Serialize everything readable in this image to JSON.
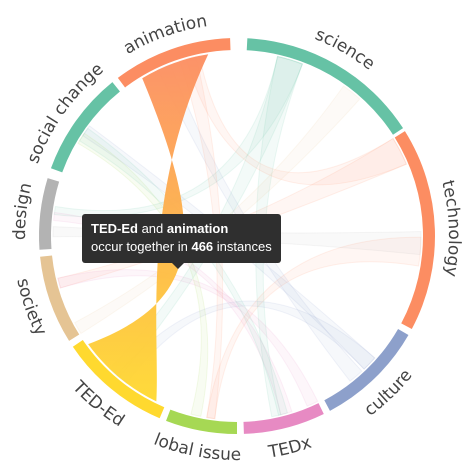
{
  "chart_data": {
    "type": "chord",
    "groups": [
      {
        "name": "science",
        "color": "#66c2a5"
      },
      {
        "name": "technology",
        "color": "#fc8d62"
      },
      {
        "name": "culture",
        "color": "#8da0cb"
      },
      {
        "name": "TEDx",
        "color": "#e78ac3"
      },
      {
        "name": "lobal issue",
        "color": "#a6d854"
      },
      {
        "name": "TED-Ed",
        "color": "#ffd92f"
      },
      {
        "name": "society",
        "color": "#e5c494"
      },
      {
        "name": "design",
        "color": "#b3b3b3"
      },
      {
        "name": "social change",
        "color": "#66c2a5"
      },
      {
        "name": "animation",
        "color": "#fc8d62"
      }
    ],
    "highlighted_pair": {
      "source": "TED-Ed",
      "target": "animation",
      "value": 466
    }
  },
  "tooltip": {
    "source": "TED-Ed",
    "conjunction": "and",
    "target": "animation",
    "line2_prefix": "occur together in",
    "value": "466",
    "line2_suffix": "instances"
  }
}
